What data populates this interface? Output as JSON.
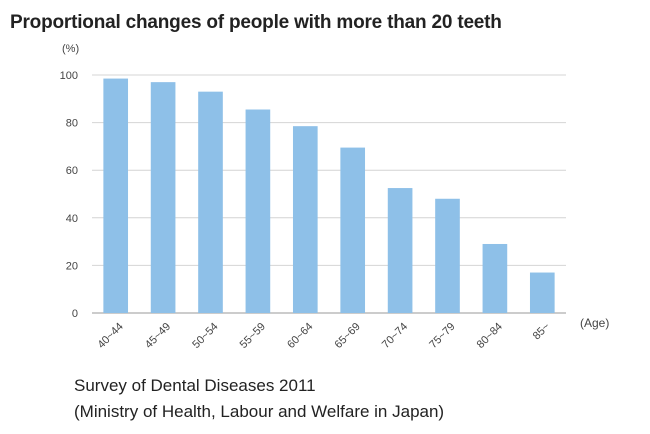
{
  "chart_data": {
    "type": "bar",
    "title": "Proportional changes of people with more than 20 teeth",
    "ylabel_unit": "(%)",
    "xlabel_unit": "(Age)",
    "categories": [
      "40~44",
      "45~49",
      "50~54",
      "55~59",
      "60~64",
      "65~69",
      "70~74",
      "75~79",
      "80~84",
      "85~"
    ],
    "values": [
      98.5,
      97,
      93,
      85.5,
      78.5,
      69.5,
      52.5,
      48,
      29,
      17
    ],
    "ylim": [
      0,
      100
    ],
    "yticks": [
      0,
      20,
      40,
      60,
      80,
      100
    ],
    "grid": true,
    "bar_color": "#8ec0e8"
  },
  "source": {
    "line1": "Survey of Dental Diseases 2011",
    "line2": "(Ministry of Health, Labour and Welfare in Japan)"
  }
}
